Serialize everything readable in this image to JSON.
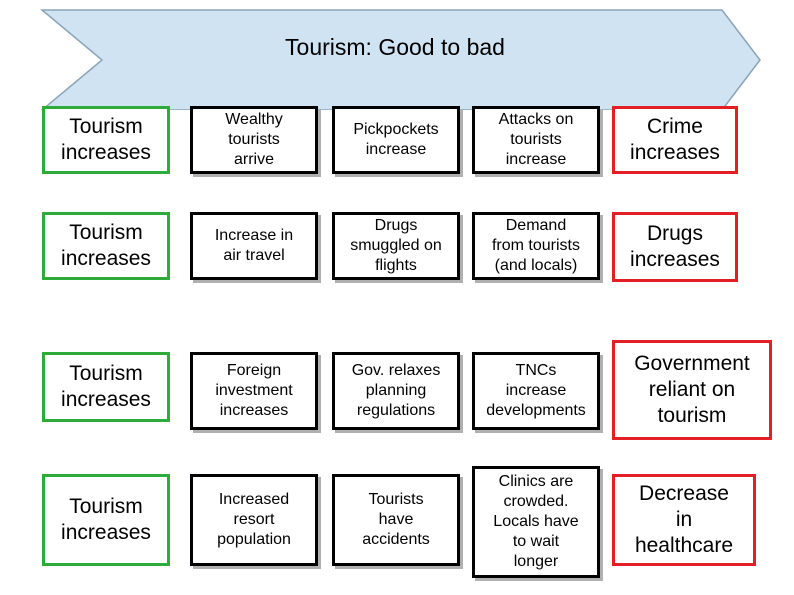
{
  "title": "Tourism: Good to bad",
  "colors": {
    "banner_fill": "#cfe3f3",
    "banner_stroke": "#8aa4b8",
    "green": "#2eab3a",
    "red": "#e31e24"
  },
  "rows": [
    [
      "Tourism\nincreases",
      "Wealthy\ntourists\narrive",
      "Pickpockets\nincrease",
      "Attacks on\ntourists\nincrease",
      "Crime\nincreases"
    ],
    [
      "Tourism\nincreases",
      "Increase in\nair travel",
      "Drugs\nsmuggled on\nflights",
      "Demand\nfrom tourists\n(and locals)",
      "Drugs\nincreases"
    ],
    [
      "Tourism\nincreases",
      "Foreign\ninvestment\nincreases",
      "Gov. relaxes\nplanning\nregulations",
      "TNCs\nincrease\ndevelopments",
      "Government\nreliant on\ntourism"
    ],
    [
      "Tourism\nincreases",
      "Increased\nresort\npopulation",
      "Tourists\nhave\naccidents",
      "Clinics are\ncrowded.\nLocals have\nto wait\nlonger",
      "Decrease\nin\nhealthcare"
    ]
  ]
}
